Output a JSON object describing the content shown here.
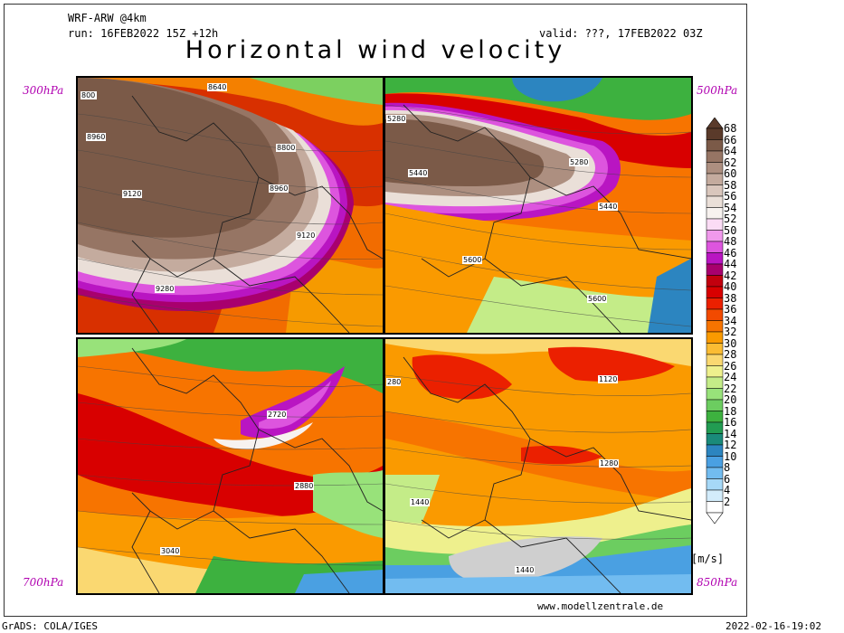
{
  "header": {
    "model": "WRF-ARW @4km",
    "run": "run: 16FEB2022 15Z +12h",
    "valid": "valid: ???, 17FEB2022 03Z",
    "title": "Horizontal wind velocity"
  },
  "panels": {
    "p300": {
      "level": "300hPa",
      "labels": [
        "800",
        "8640",
        "8960",
        "8800",
        "9120",
        "8960",
        "9120",
        "9280"
      ]
    },
    "p500": {
      "level": "500hPa",
      "labels": [
        "5280",
        "5440",
        "5280",
        "5440",
        "5600",
        "5600"
      ]
    },
    "p700": {
      "level": "700hPa",
      "labels": [
        "2720",
        "2880",
        "3040"
      ]
    },
    "p850": {
      "level": "850hPa",
      "labels": [
        "280",
        "1120",
        "1280",
        "1440",
        "1440"
      ]
    }
  },
  "colorbar": {
    "unit": "[m/s]",
    "ticks": [
      "68",
      "66",
      "64",
      "62",
      "60",
      "58",
      "56",
      "54",
      "52",
      "50",
      "48",
      "46",
      "44",
      "42",
      "40",
      "38",
      "36",
      "34",
      "32",
      "30",
      "28",
      "26",
      "24",
      "22",
      "20",
      "18",
      "16",
      "14",
      "12",
      "10",
      "8",
      "6",
      "4",
      "2"
    ],
    "colors": [
      "#5a3a2a",
      "#7b5a48",
      "#967564",
      "#ad8f80",
      "#c4ab9e",
      "#d9c6bc",
      "#eadfd8",
      "#f7f2ef",
      "#fbdcf5",
      "#f099ec",
      "#dd55de",
      "#b915c2",
      "#a8006e",
      "#c2000e",
      "#d80000",
      "#eb2000",
      "#f24a00",
      "#f77400",
      "#fa9a00",
      "#fbbc33",
      "#fad871",
      "#eef08d",
      "#c4ec88",
      "#98e27a",
      "#6ccd60",
      "#3db13f",
      "#229c52",
      "#1a8a7a",
      "#2c85c0",
      "#4aa0e2",
      "#72bcf0",
      "#a6d8f7",
      "#d3ecfb",
      "#ffffff"
    ]
  },
  "footer": {
    "website": "www.modellzentrale.de",
    "software": "GrADS: COLA/IGES",
    "timestamp": "2022-02-16-19:02"
  }
}
